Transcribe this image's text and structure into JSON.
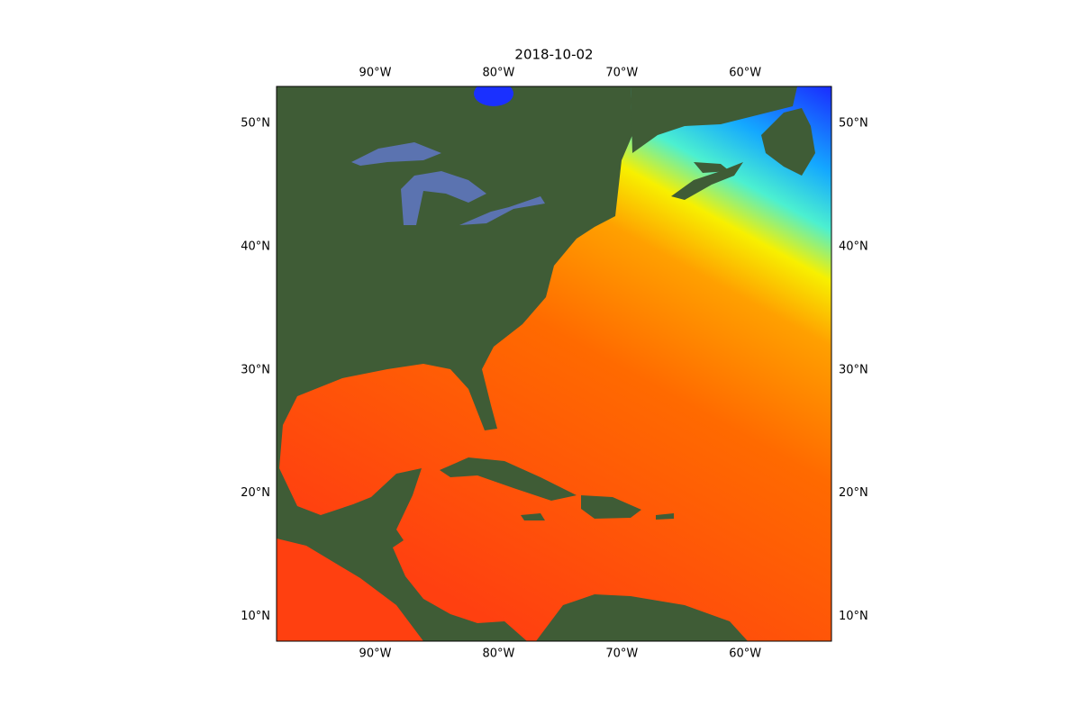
{
  "map": {
    "type": "map",
    "title": "2018-10-02",
    "xlim": [
      -98,
      -53
    ],
    "ylim": [
      8,
      53
    ],
    "xticks": [
      {
        "value": -90,
        "label": "90°W"
      },
      {
        "value": -80,
        "label": "80°W"
      },
      {
        "value": -70,
        "label": "70°W"
      },
      {
        "value": -60,
        "label": "60°W"
      }
    ],
    "yticks": [
      {
        "value": 10,
        "label": "10°N"
      },
      {
        "value": 20,
        "label": "20°N"
      },
      {
        "value": 30,
        "label": "30°N"
      },
      {
        "value": 40,
        "label": "40°N"
      },
      {
        "value": 50,
        "label": "50°N"
      }
    ]
  }
}
